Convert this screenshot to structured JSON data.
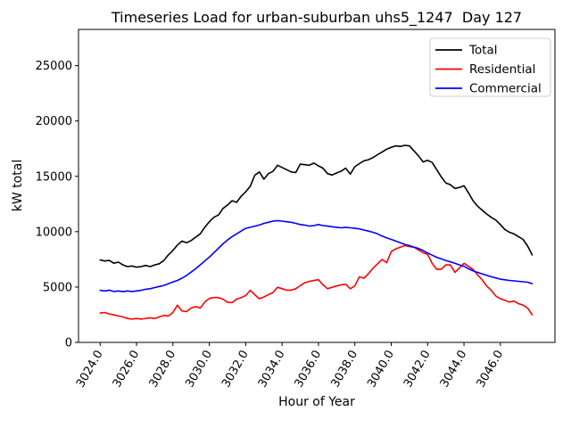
{
  "title": "Timeseries Load for urban-suburban uhs5_1247  Day 127",
  "chart_data": {
    "type": "line",
    "title": "Timeseries Load for urban-suburban uhs5_1247  Day 127",
    "xlabel": "Hour of Year",
    "ylabel": "kW total",
    "grid": false,
    "legend_position": "upper right",
    "xlim": [
      3022.81,
      3049.0
    ],
    "ylim": [
      0,
      28270
    ],
    "x_ticks": [
      3024,
      3026,
      3028,
      3030,
      3032,
      3034,
      3036,
      3038,
      3040,
      3042,
      3044,
      3046
    ],
    "x_tick_labels": [
      "3024.0",
      "3026.0",
      "3028.0",
      "3030.0",
      "3032.0",
      "3034.0",
      "3036.0",
      "3038.0",
      "3040.0",
      "3042.0",
      "3044.0",
      "3046.0"
    ],
    "y_ticks": [
      0,
      5000,
      10000,
      15000,
      20000,
      25000
    ],
    "y_tick_labels": [
      "0",
      "5000",
      "10000",
      "15000",
      "20000",
      "25000"
    ],
    "x_start": 3024.0,
    "x_step": 0.25,
    "series": [
      {
        "name": "Total",
        "color": "#000000",
        "values": [
          7450,
          7350,
          7400,
          7150,
          7250,
          7000,
          6850,
          6900,
          6800,
          6850,
          6950,
          6850,
          7000,
          7100,
          7400,
          7900,
          8300,
          8800,
          9150,
          9000,
          9200,
          9500,
          9800,
          10400,
          10900,
          11300,
          11500,
          12100,
          12400,
          12800,
          12650,
          13200,
          13600,
          14100,
          15100,
          15400,
          14750,
          15250,
          15450,
          16000,
          15800,
          15600,
          15400,
          15340,
          16100,
          16050,
          16000,
          16200,
          15950,
          15740,
          15250,
          15120,
          15300,
          15470,
          15740,
          15200,
          15870,
          16150,
          16400,
          16500,
          16700,
          16950,
          17200,
          17450,
          17620,
          17750,
          17700,
          17800,
          17750,
          17300,
          16850,
          16300,
          16450,
          16250,
          15600,
          14950,
          14400,
          14250,
          13900,
          14000,
          14150,
          13500,
          12800,
          12300,
          11950,
          11600,
          11300,
          11050,
          10650,
          10200,
          9950,
          9800,
          9550,
          9300,
          8700,
          7900
        ]
      },
      {
        "name": "Residential",
        "color": "#ff0000",
        "values": [
          2650,
          2700,
          2570,
          2480,
          2380,
          2300,
          2160,
          2110,
          2160,
          2110,
          2160,
          2220,
          2160,
          2300,
          2440,
          2380,
          2700,
          3370,
          2840,
          2780,
          3100,
          3240,
          3100,
          3640,
          3970,
          4050,
          4050,
          3910,
          3640,
          3590,
          3910,
          4050,
          4230,
          4700,
          4300,
          3950,
          4100,
          4320,
          4500,
          4980,
          4850,
          4720,
          4720,
          4850,
          5120,
          5390,
          5520,
          5590,
          5660,
          5200,
          4850,
          4980,
          5100,
          5200,
          5250,
          4850,
          5100,
          5930,
          5800,
          6200,
          6700,
          7100,
          7500,
          7200,
          8200,
          8450,
          8600,
          8750,
          8650,
          8600,
          8350,
          8100,
          7940,
          7140,
          6600,
          6600,
          7000,
          7000,
          6330,
          6730,
          7140,
          6870,
          6600,
          6100,
          5660,
          5100,
          4700,
          4200,
          3950,
          3800,
          3650,
          3730,
          3500,
          3370,
          3100,
          2500
        ]
      },
      {
        "name": "Commercial",
        "color": "#0000ff",
        "values": [
          4700,
          4650,
          4720,
          4600,
          4650,
          4580,
          4650,
          4600,
          4650,
          4700,
          4800,
          4850,
          4950,
          5050,
          5150,
          5300,
          5450,
          5600,
          5800,
          6050,
          6350,
          6650,
          7000,
          7350,
          7700,
          8100,
          8500,
          8900,
          9250,
          9550,
          9800,
          10050,
          10300,
          10400,
          10500,
          10600,
          10750,
          10850,
          10950,
          11000,
          10950,
          10900,
          10850,
          10750,
          10650,
          10600,
          10500,
          10550,
          10650,
          10550,
          10500,
          10450,
          10400,
          10350,
          10400,
          10350,
          10300,
          10250,
          10150,
          10050,
          9950,
          9800,
          9600,
          9450,
          9300,
          9150,
          9000,
          8850,
          8750,
          8600,
          8480,
          8300,
          8080,
          7880,
          7680,
          7550,
          7400,
          7270,
          7140,
          7000,
          6870,
          6650,
          6460,
          6320,
          6190,
          6060,
          5930,
          5820,
          5710,
          5650,
          5600,
          5560,
          5520,
          5480,
          5440,
          5310
        ]
      }
    ]
  }
}
